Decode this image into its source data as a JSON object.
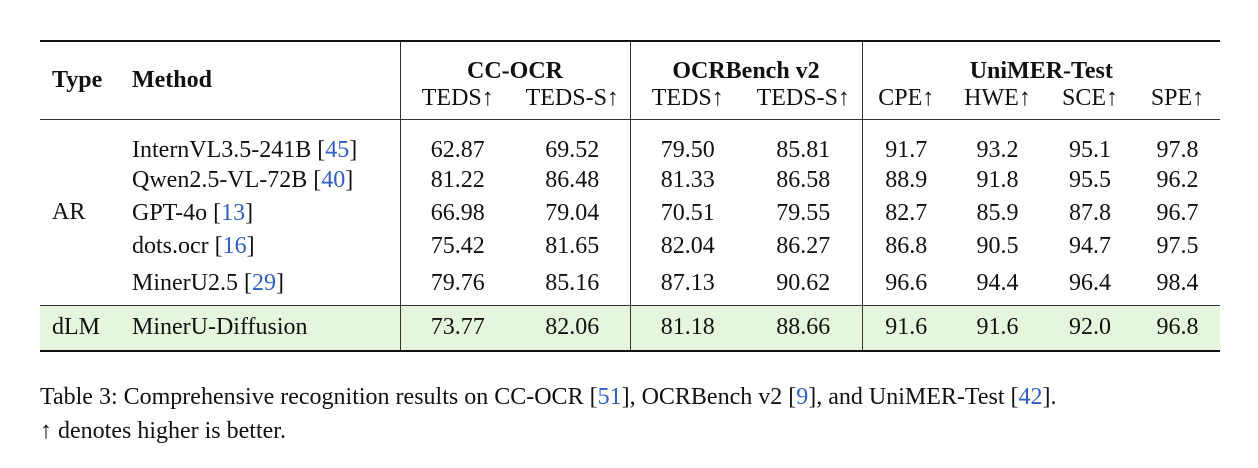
{
  "table": {
    "columns": {
      "type": "Type",
      "method": "Method"
    },
    "groups": [
      {
        "title": "CC-OCR",
        "metrics": [
          "TEDS↑",
          "TEDS-S↑"
        ]
      },
      {
        "title": "OCRBench v2",
        "metrics": [
          "TEDS↑",
          "TEDS-S↑"
        ]
      },
      {
        "title": "UniMER-Test",
        "metrics": [
          "CPE↑",
          "HWE↑",
          "SCE↑",
          "SPE↑"
        ]
      }
    ],
    "link_color": "#2f5fc4",
    "row_groups": [
      {
        "type": "AR",
        "rows": [
          {
            "method": [
              "InternVL3.5-241B [",
              "45",
              "]"
            ],
            "values": [
              "62.87",
              "69.52",
              "79.50",
              "85.81",
              "91.7",
              "93.2",
              "95.1",
              "97.8"
            ]
          },
          {
            "method": [
              "Qwen2.5-VL-72B [",
              "40",
              "]"
            ],
            "values": [
              "81.22",
              "86.48",
              "81.33",
              "86.58",
              "88.9",
              "91.8",
              "95.5",
              "96.2"
            ]
          },
          {
            "method": [
              "GPT-4o [",
              "13",
              "]"
            ],
            "values": [
              "66.98",
              "79.04",
              "70.51",
              "79.55",
              "82.7",
              "85.9",
              "87.8",
              "96.7"
            ]
          },
          {
            "method": [
              "dots.ocr [",
              "16",
              "]"
            ],
            "values": [
              "75.42",
              "81.65",
              "82.04",
              "86.27",
              "86.8",
              "90.5",
              "94.7",
              "97.5"
            ]
          },
          {
            "method": [
              "MinerU2.5 [",
              "29",
              "]"
            ],
            "values": [
              "79.76",
              "85.16",
              "87.13",
              "90.62",
              "96.6",
              "94.4",
              "96.4",
              "98.4"
            ]
          }
        ]
      },
      {
        "type": "dLM",
        "highlight": "#e5f6dc",
        "rows": [
          {
            "method": [
              "MinerU-Diffusion"
            ],
            "values": [
              "73.77",
              "82.06",
              "81.18",
              "88.66",
              "91.6",
              "91.6",
              "92.0",
              "96.8"
            ]
          }
        ]
      }
    ]
  },
  "caption": [
    [
      "Table 3: Comprehensive recognition results on CC-OCR [",
      "51",
      "], OCRBench v2 [",
      "9",
      "], and UniMER-Test [",
      "42",
      "]."
    ],
    [
      "↑ denotes higher is better."
    ]
  ]
}
